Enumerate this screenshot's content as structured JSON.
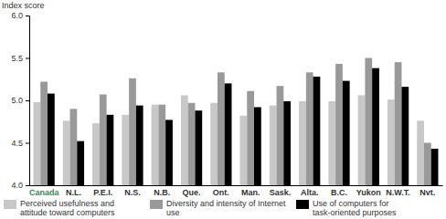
{
  "chart_data": {
    "type": "bar",
    "y_label": "Index score",
    "categories": [
      "Canada",
      "N.L.",
      "P.E.I.",
      "N.S.",
      "N.B.",
      "Que.",
      "Ont.",
      "Man.",
      "Sask.",
      "Alta.",
      "B.C.",
      "Yukon",
      "N.W.T.",
      "Nvt."
    ],
    "series": [
      {
        "name": "Perceived usefulness and attitude toward computers",
        "color": "#c8c8c8",
        "values": [
          4.98,
          4.76,
          4.73,
          4.83,
          4.95,
          5.06,
          4.97,
          4.82,
          4.94,
          4.99,
          4.99,
          5.06,
          5.01,
          4.76
        ]
      },
      {
        "name": "Diversity and intensity of Internet use",
        "color": "#999999",
        "values": [
          5.22,
          4.9,
          5.07,
          5.26,
          4.95,
          4.97,
          5.33,
          5.11,
          5.17,
          5.33,
          5.43,
          5.5,
          5.45,
          4.5
        ]
      },
      {
        "name": "Use of computers for task-oriented purposes",
        "color": "#000000",
        "values": [
          5.08,
          4.52,
          4.83,
          4.94,
          4.77,
          4.88,
          5.2,
          4.92,
          4.99,
          5.28,
          5.23,
          5.38,
          5.16,
          4.43
        ]
      }
    ],
    "ylim": [
      4,
      6
    ],
    "yticks": [
      {
        "value": 4,
        "label": "4.0"
      },
      {
        "value": 4.5,
        "label": "4.5"
      },
      {
        "value": 5,
        "label": "5.0"
      },
      {
        "value": 5.5,
        "label": "5.5"
      },
      {
        "value": 6,
        "label": "6.0"
      }
    ],
    "grid": false,
    "legend": "bottom"
  }
}
